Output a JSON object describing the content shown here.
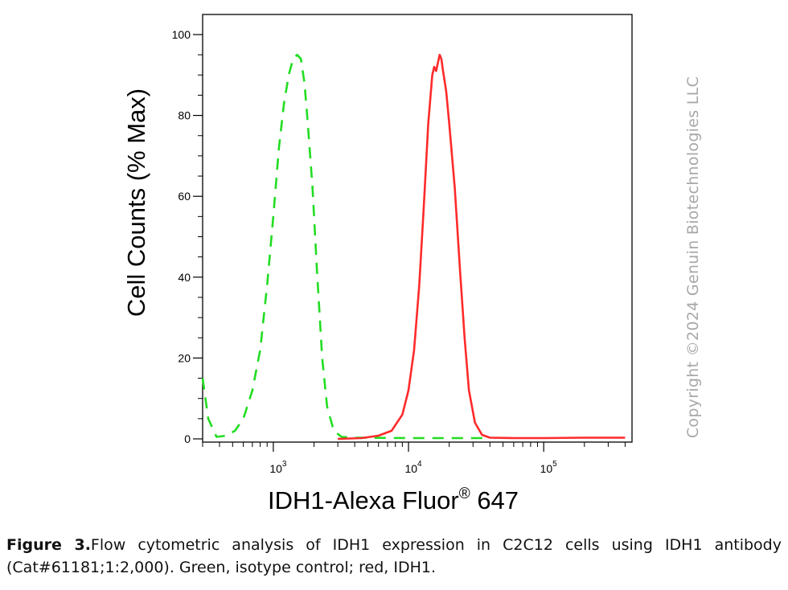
{
  "chart_data": {
    "type": "line",
    "xlabel": "IDH1-Alexa Fluor",
    "xlabel_sup": "®",
    "xlabel_suffix": " 647",
    "ylabel": "Cell Counts (% Max)",
    "x_scale": "log",
    "xlim": [
      300,
      450000
    ],
    "ylim": [
      0,
      100
    ],
    "y_ticks": [
      "0",
      "20",
      "40",
      "60",
      "80",
      "100"
    ],
    "x_ticks": [
      {
        "base": "10",
        "exp": "3",
        "value": 1000
      },
      {
        "base": "10",
        "exp": "4",
        "value": 10000
      },
      {
        "base": "10",
        "exp": "5",
        "value": 100000
      }
    ],
    "grid": false,
    "legend": "none",
    "series": [
      {
        "color": "#22dd22",
        "style": "dashed",
        "points": [
          [
            300,
            15
          ],
          [
            330,
            5
          ],
          [
            380,
            0.5
          ],
          [
            450,
            0.8
          ],
          [
            520,
            2
          ],
          [
            600,
            5
          ],
          [
            700,
            12
          ],
          [
            800,
            22
          ],
          [
            900,
            38
          ],
          [
            1000,
            55
          ],
          [
            1100,
            72
          ],
          [
            1200,
            83
          ],
          [
            1300,
            90
          ],
          [
            1400,
            94
          ],
          [
            1500,
            95
          ],
          [
            1600,
            94
          ],
          [
            1700,
            88
          ],
          [
            1800,
            78
          ],
          [
            1950,
            62
          ],
          [
            2100,
            42
          ],
          [
            2300,
            20
          ],
          [
            2500,
            8
          ],
          [
            2800,
            2
          ],
          [
            3200,
            0.5
          ],
          [
            4000,
            0.3
          ],
          [
            10000,
            0.2
          ],
          [
            20000,
            0.2
          ],
          [
            40000,
            0.2
          ]
        ]
      },
      {
        "color": "#ff2a2a",
        "style": "solid",
        "points": [
          [
            3000,
            0
          ],
          [
            4500,
            0.2
          ],
          [
            6000,
            0.8
          ],
          [
            7500,
            2
          ],
          [
            9000,
            6
          ],
          [
            10000,
            12
          ],
          [
            11000,
            22
          ],
          [
            12000,
            38
          ],
          [
            13000,
            58
          ],
          [
            14000,
            78
          ],
          [
            15000,
            90
          ],
          [
            15500,
            92
          ],
          [
            16000,
            91
          ],
          [
            16500,
            93
          ],
          [
            17000,
            95
          ],
          [
            17500,
            94
          ],
          [
            18000,
            91
          ],
          [
            19000,
            86
          ],
          [
            20000,
            78
          ],
          [
            22000,
            62
          ],
          [
            24000,
            42
          ],
          [
            26000,
            25
          ],
          [
            28000,
            12
          ],
          [
            31000,
            4
          ],
          [
            35000,
            1
          ],
          [
            40000,
            0.3
          ],
          [
            60000,
            0.2
          ],
          [
            100000,
            0.2
          ],
          [
            200000,
            0.3
          ],
          [
            400000,
            0.3
          ]
        ]
      }
    ]
  },
  "caption": {
    "figure_label": "Figure 3.",
    "text": "Flow cytometric analysis of IDH1 expression in C2C12 cells using IDH1 antibody (Cat#61181;1:2,000). Green, isotype control; red, IDH1."
  },
  "watermark": "Copyright ©2024 Genuin Biotechnologies LLC"
}
